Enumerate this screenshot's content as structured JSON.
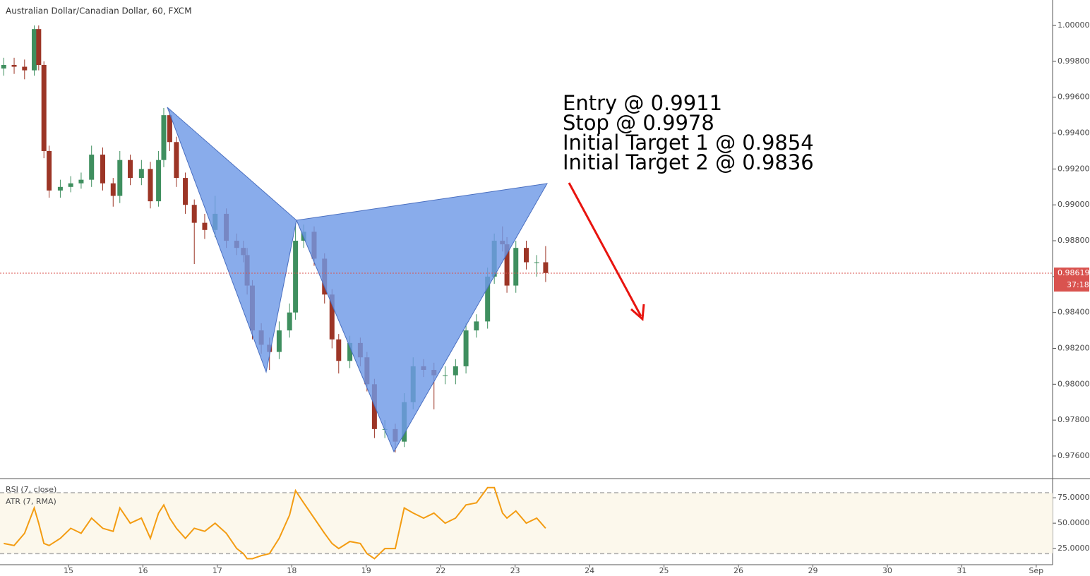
{
  "chart_data": {
    "type": "candlestick",
    "title": "Australian Dollar/Canadian Dollar, 60, FXCM",
    "annotations": [
      "Entry @ 0.9911",
      "Stop @ 0.9978",
      "Initial Target 1 @ 0.9854",
      "Initial Target 2 @ 0.9836"
    ],
    "last_price": 0.98619,
    "countdown": "37:18",
    "up_color": "#3f8f5f",
    "down_color": "#9c3526",
    "x": [
      -0.87,
      -0.73,
      -0.59,
      -0.46,
      -0.4,
      -0.33,
      -0.26,
      -0.11,
      0.03,
      0.17,
      0.31,
      0.46,
      0.6,
      0.69,
      0.83,
      0.98,
      1.1,
      1.21,
      1.28,
      1.36,
      1.45,
      1.57,
      1.69,
      1.83,
      1.97,
      2.12,
      2.26,
      2.35,
      2.4,
      2.47,
      2.59,
      2.7,
      2.83,
      2.97,
      3.05,
      3.16,
      3.3,
      3.44,
      3.54,
      3.63,
      3.78,
      3.92,
      4.01,
      4.11,
      4.25,
      4.39,
      4.51,
      4.63,
      4.77,
      4.91,
      5.06,
      5.2,
      5.34,
      5.48,
      5.63,
      5.72,
      5.83,
      5.89,
      6.01,
      6.15,
      6.29,
      6.41
    ],
    "open": [
      0.9976,
      0.9978,
      0.9977,
      0.9975,
      0.9998,
      0.9978,
      0.993,
      0.9908,
      0.991,
      0.9912,
      0.9914,
      0.9928,
      0.9912,
      0.9905,
      0.9925,
      0.9915,
      0.992,
      0.9902,
      0.9925,
      0.995,
      0.9935,
      0.9915,
      0.99,
      0.989,
      0.9886,
      0.9895,
      0.988,
      0.9876,
      0.9872,
      0.9855,
      0.983,
      0.9822,
      0.9818,
      0.983,
      0.984,
      0.988,
      0.9885,
      0.987,
      0.985,
      0.9825,
      0.9813,
      0.9823,
      0.9815,
      0.98,
      0.9775,
      0.9775,
      0.9768,
      0.979,
      0.981,
      0.9808,
      0.9805,
      0.9805,
      0.981,
      0.983,
      0.9835,
      0.986,
      0.988,
      0.9878,
      0.9855,
      0.9876,
      0.9868,
      0.9868
    ],
    "high": [
      0.9982,
      0.9982,
      0.9981,
      1.0,
      1.0,
      0.998,
      0.9933,
      0.9914,
      0.9916,
      0.9918,
      0.9933,
      0.9932,
      0.9915,
      0.993,
      0.9928,
      0.9925,
      0.9924,
      0.993,
      0.9954,
      0.9953,
      0.9938,
      0.9918,
      0.9903,
      0.9895,
      0.9905,
      0.9898,
      0.9884,
      0.988,
      0.9876,
      0.9858,
      0.9834,
      0.9826,
      0.9835,
      0.9845,
      0.989,
      0.9889,
      0.9888,
      0.9873,
      0.9853,
      0.9828,
      0.9827,
      0.9826,
      0.9818,
      0.9803,
      0.978,
      0.9778,
      0.9795,
      0.9815,
      0.9814,
      0.9812,
      0.981,
      0.9814,
      0.9834,
      0.9839,
      0.9865,
      0.9884,
      0.9888,
      0.9882,
      0.988,
      0.988,
      0.9872,
      0.9877
    ],
    "low": [
      0.9972,
      0.9973,
      0.997,
      0.9972,
      0.9975,
      0.9926,
      0.9904,
      0.9904,
      0.9907,
      0.9909,
      0.991,
      0.9908,
      0.9899,
      0.9901,
      0.9911,
      0.9911,
      0.9898,
      0.9899,
      0.9921,
      0.993,
      0.991,
      0.9895,
      0.9867,
      0.9881,
      0.9882,
      0.9876,
      0.9872,
      0.9868,
      0.985,
      0.9825,
      0.9817,
      0.9808,
      0.9814,
      0.9826,
      0.9836,
      0.9876,
      0.9866,
      0.9845,
      0.982,
      0.9806,
      0.9809,
      0.981,
      0.9796,
      0.977,
      0.977,
      0.9762,
      0.9765,
      0.9786,
      0.9804,
      0.9786,
      0.98,
      0.98,
      0.9806,
      0.9826,
      0.9831,
      0.9856,
      0.9874,
      0.9851,
      0.9851,
      0.9864,
      0.986,
      0.9857
    ],
    "close": [
      0.9978,
      0.9977,
      0.9975,
      0.9998,
      0.9978,
      0.993,
      0.9908,
      0.991,
      0.9912,
      0.9914,
      0.9928,
      0.9912,
      0.9905,
      0.9925,
      0.9915,
      0.992,
      0.9902,
      0.9925,
      0.995,
      0.9935,
      0.9915,
      0.99,
      0.989,
      0.9886,
      0.9895,
      0.988,
      0.9876,
      0.9872,
      0.9855,
      0.983,
      0.9822,
      0.9818,
      0.983,
      0.984,
      0.988,
      0.9885,
      0.987,
      0.985,
      0.9825,
      0.9813,
      0.9823,
      0.9815,
      0.98,
      0.9775,
      0.9775,
      0.9768,
      0.979,
      0.981,
      0.9808,
      0.9805,
      0.9805,
      0.981,
      0.983,
      0.9835,
      0.986,
      0.988,
      0.9878,
      0.9855,
      0.9876,
      0.9868,
      0.9868,
      0.9862
    ],
    "xlim": [
      -0.92,
      13.22
    ],
    "xticks": [
      {
        "value": 0,
        "label": "15"
      },
      {
        "value": 1,
        "label": "16"
      },
      {
        "value": 2,
        "label": "17"
      },
      {
        "value": 3,
        "label": "18"
      },
      {
        "value": 4,
        "label": "19"
      },
      {
        "value": 5,
        "label": "22"
      },
      {
        "value": 6,
        "label": "23"
      },
      {
        "value": 7,
        "label": "24"
      },
      {
        "value": 8,
        "label": "25"
      },
      {
        "value": 9,
        "label": "26"
      },
      {
        "value": 10,
        "label": "29"
      },
      {
        "value": 11,
        "label": "30"
      },
      {
        "value": 12,
        "label": "31"
      },
      {
        "value": 13,
        "label": "Sep"
      }
    ],
    "ylim": [
      0.97474,
      1.00142
    ],
    "yticks": [
      {
        "value": 1,
        "label": "1.00000"
      },
      {
        "value": 0.998,
        "label": "0.99800"
      },
      {
        "value": 0.996,
        "label": "0.99600"
      },
      {
        "value": 0.994,
        "label": "0.99400"
      },
      {
        "value": 0.992,
        "label": "0.99200"
      },
      {
        "value": 0.99,
        "label": "0.99000"
      },
      {
        "value": 0.988,
        "label": "0.98800"
      },
      {
        "value": 0.986,
        "label": "0.98600"
      },
      {
        "value": 0.984,
        "label": "0.98400"
      },
      {
        "value": 0.982,
        "label": "0.98200"
      },
      {
        "value": 0.98,
        "label": "0.98000"
      },
      {
        "value": 0.978,
        "label": "0.97800"
      },
      {
        "value": 0.976,
        "label": "0.97600"
      }
    ],
    "rsi": {
      "label": "RSI (7, close)",
      "color": "#f39c12",
      "values": [
        30,
        28,
        40,
        65,
        50,
        30,
        28,
        35,
        45,
        40,
        55,
        45,
        42,
        65,
        50,
        55,
        35,
        60,
        68,
        55,
        45,
        35,
        45,
        42,
        50,
        40,
        25,
        20,
        15,
        15,
        18,
        20,
        35,
        58,
        82,
        70,
        55,
        40,
        30,
        25,
        32,
        30,
        20,
        15,
        25,
        25,
        65,
        60,
        55,
        60,
        50,
        55,
        68,
        70,
        85,
        85,
        60,
        55,
        62,
        50,
        55,
        45
      ],
      "ylim": [
        9.1,
        93.9
      ],
      "bands": [
        20,
        80
      ],
      "yticks": [
        {
          "value": 75,
          "label": "75.0000"
        },
        {
          "value": 50,
          "label": "50.0000"
        },
        {
          "value": 25,
          "label": "25.0000"
        }
      ]
    },
    "atr_label": "ATR (7, RMA)"
  }
}
